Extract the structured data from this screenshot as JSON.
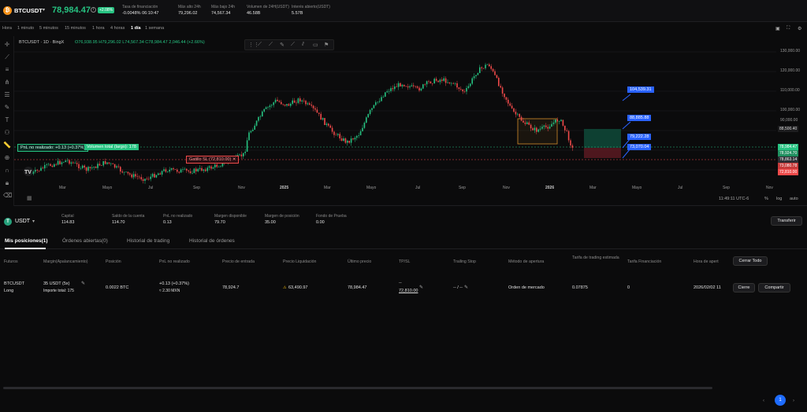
{
  "ticker": {
    "symbol": "BTCUSDT",
    "price": "78,984.47",
    "change_badge": "+2.08%",
    "stats": [
      {
        "label": "Tasa de financiación",
        "value": "-0.0048% 06:10:47"
      },
      {
        "label": "Máx alto 24h",
        "value": "79,296.02"
      },
      {
        "label": "Más bajo 24h",
        "value": "74,567.34"
      },
      {
        "label": "Volumen de 24H(USDT)",
        "value": "46.58B"
      },
      {
        "label": "Interés abierto(USDT)",
        "value": "5.57B"
      }
    ]
  },
  "timeframes": [
    "Hora",
    "1 minuto",
    "5 minutos",
    "15 minutos",
    "1 hora",
    "4 horas",
    "1 día",
    "1 semana"
  ],
  "chart": {
    "legend": "BTCUSDT · 1D · BingX",
    "ohlc": "O76,938.95 H79,296.02 L74,567.34 C78,984.47 2,046.44 (+2.66%)",
    "pnl_label": "PnL no realizado: +0.13 (+0.37%)",
    "volume_label": "Volumen total (largo): 178",
    "stop_label": "Gatillo SL (72,810.00) ✕",
    "price_tags": [
      "104,539.31",
      "88,885.88",
      "79,222.28",
      "73,070.04"
    ],
    "axis_prices": [
      "130,000.00",
      "120,000.00",
      "110,000.00",
      "100,000.00",
      "90,000.00",
      "88,500.40",
      "78,984.47",
      "78,924.70",
      "78,863.14",
      "73,080.78",
      "72,810.00"
    ],
    "x_ticks": [
      "Mar",
      "Mayo",
      "Jul",
      "Sep",
      "Nov",
      "2025",
      "Mar",
      "Mayo",
      "Jul",
      "Sep",
      "Nov",
      "2026",
      "Mar",
      "Mayo",
      "Jul",
      "Sep",
      "Nov"
    ],
    "status_time": "11:49:11 UTC-6",
    "status_opts": [
      "%",
      "log",
      "auto"
    ]
  },
  "account": {
    "currency": "USDT",
    "stats": [
      {
        "label": "Capital",
        "value": "114.83"
      },
      {
        "label": "Saldo de la cuenta",
        "value": "114.70"
      },
      {
        "label": "PnL no realizado",
        "value": "0.13"
      },
      {
        "label": "Margen disponible",
        "value": "79.70"
      },
      {
        "label": "Margen de posición",
        "value": "35.00"
      },
      {
        "label": "Fondo de Prueba",
        "value": "0.00"
      }
    ],
    "transfer": "Transferir"
  },
  "tabs": [
    "Mis posiciones(1)",
    "Órdenes abiertas(0)",
    "Historial de trading",
    "Historial de órdenes"
  ],
  "table": {
    "headers": [
      "Futuros",
      "Margin(Apalancamiento)",
      "Posición",
      "PnL no realizado",
      "Precio de entrada",
      "Precio Liquidación",
      "Último precio",
      "TP/SL",
      "Trailing Stop",
      "Método de apertura",
      "Tarifa de trading estimada",
      "Tarifa Financiación",
      "Hora de apert"
    ],
    "close_all": "Cerrar Todo",
    "row": {
      "pair": "BTCUSDT",
      "side": "Long",
      "margin": "35 USDT (5x)",
      "margin_sub": "Importe total: 175",
      "position": "0.0022 BTC",
      "pnl": "+0.13 (+0.37%)",
      "pnl_sub": "≈ 2.30 MXN",
      "entry": "78,924.7",
      "liq": "63,490.97",
      "last": "78,984.47",
      "tp": "--",
      "sl": "72,810.00",
      "trailing": "-- / --",
      "method": "Orden de mercado",
      "fee": "0.07875",
      "funding": "0",
      "time": "2026/02/02 11",
      "close_btn": "Cierre",
      "share_btn": "Compartir"
    }
  },
  "pagination": {
    "current": "1"
  },
  "colors": {
    "up": "#26c281",
    "down": "#f04a4a",
    "tag_blue": "#2962ff",
    "accent": "#1e6cff"
  }
}
